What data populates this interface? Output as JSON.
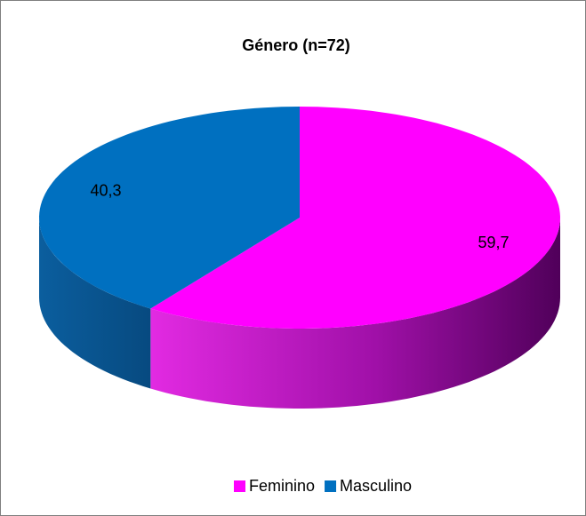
{
  "chart_data": {
    "type": "pie",
    "title": "Género (n=72)",
    "categories": [
      "Feminino",
      "Masculino"
    ],
    "values": [
      59.7,
      40.3
    ],
    "value_labels": [
      "59,7",
      "40,3"
    ],
    "colors": [
      "#ff00ff",
      "#0070c0"
    ],
    "legend": "bottom"
  }
}
